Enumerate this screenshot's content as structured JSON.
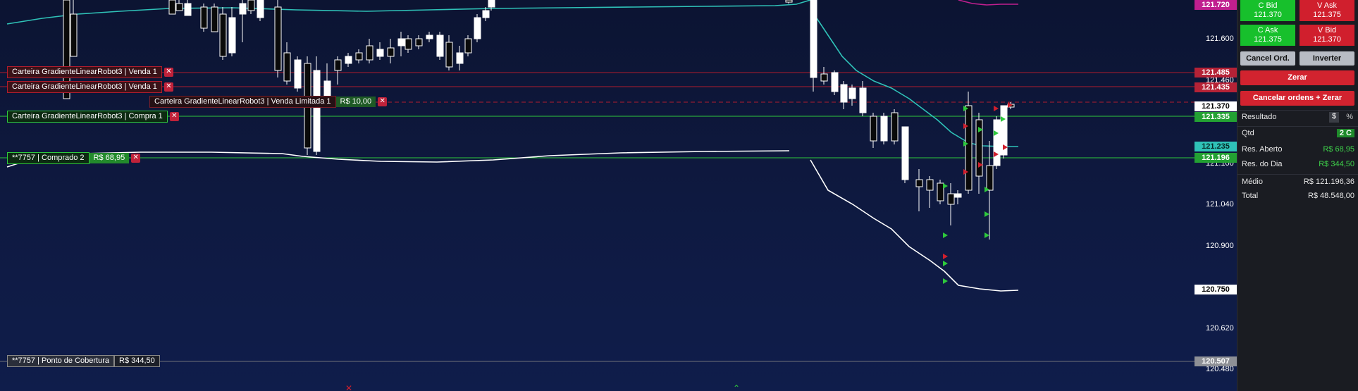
{
  "axis": {
    "labels": [
      "121.600",
      "121.460",
      "121.100",
      "121.040",
      "120.900",
      "120.620",
      "120.480"
    ]
  },
  "price_tags": [
    {
      "value": "121.720",
      "color": "#c01f8f",
      "text": "#ffffff"
    },
    {
      "value": "121.485",
      "color": "#b52236",
      "text": "#ffffff"
    },
    {
      "value": "121.435",
      "color": "#b52236",
      "text": "#ffffff"
    },
    {
      "value": "121.370",
      "color": "#ffffff",
      "text": "#000000"
    },
    {
      "value": "121.335",
      "color": "#23a133",
      "text": "#ffffff"
    },
    {
      "value": "121.235",
      "color": "#2fc2b8",
      "text": "#062a28"
    },
    {
      "value": "121.196",
      "color": "#23a133",
      "text": "#ffffff"
    },
    {
      "value": "120.750",
      "color": "#ffffff",
      "text": "#000000"
    },
    {
      "value": "120.507",
      "color": "#8e9096",
      "text": "#ffffff"
    }
  ],
  "orders": [
    {
      "label": "Carteira GradienteLinearRobot3 | Venda 1",
      "value": "",
      "close": "✕"
    },
    {
      "label": "Carteira GradienteLinearRobot3 | Venda 1",
      "value": "",
      "close": "✕"
    },
    {
      "label": "Carteira GradienteLinearRobot3 | Venda Limitada 1",
      "value": "R$ 10,00",
      "close": "✕"
    },
    {
      "label": "Carteira GradienteLinearRobot3 | Compra 1",
      "value": "",
      "close": "✕"
    },
    {
      "label": "**7757 | Comprado 2",
      "value": "R$ 68,95",
      "close": "✕"
    },
    {
      "label": "**7757 | Ponto de Cobertura",
      "value": "R$ 344,50",
      "close": ""
    }
  ],
  "panel": {
    "c_bid": {
      "label": "C Bid",
      "value": "121.370"
    },
    "v_ask": {
      "label": "V Ask",
      "value": "121.375"
    },
    "c_ask": {
      "label": "C Ask",
      "value": "121.375"
    },
    "v_bid": {
      "label": "V Bid",
      "value": "121.370"
    },
    "cancel_orders": "Cancel Ord.",
    "invert": "Inverter",
    "zero": "Zerar",
    "cancel_zero": "Cancelar ordens + Zerar",
    "result_label": "Resultado",
    "currency_symbol": "$",
    "percent_symbol": "%",
    "rows": [
      {
        "label": "Qtd",
        "value": "2 C"
      },
      {
        "label": "Res. Aberto",
        "value": "R$ 68,95"
      },
      {
        "label": "Res. do Dia",
        "value": "R$ 344,50"
      },
      {
        "label": "Médio",
        "value": "R$ 121.196,36"
      },
      {
        "label": "Total",
        "value": "R$ 48.548,00"
      }
    ]
  },
  "colors": {
    "green": "#2ec93c",
    "red": "#d01f2d",
    "cyan": "#2fc2b8",
    "magenta": "#c01f8f"
  }
}
